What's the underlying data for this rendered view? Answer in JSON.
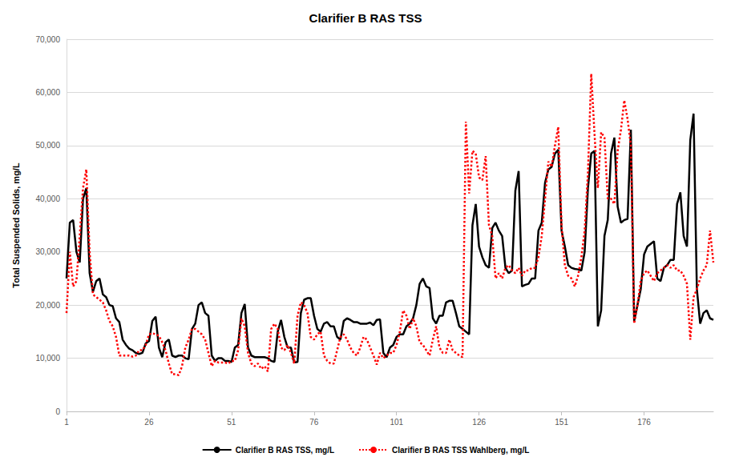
{
  "chart_data": {
    "type": "line",
    "title": "Clarifier B RAS TSS",
    "y_label": "Total Suspended Solids, mg/L",
    "xlim": [
      1,
      197
    ],
    "xticks": [
      1,
      26,
      51,
      76,
      101,
      126,
      151,
      176
    ],
    "ylim": [
      0,
      70000
    ],
    "yticks": [
      0,
      {
        "value": 10000,
        "label": "10,000"
      },
      {
        "value": 20000,
        "label": "20,000"
      },
      {
        "value": 30000,
        "label": "30,000"
      },
      {
        "value": 40000,
        "label": "40,000"
      },
      {
        "value": 50000,
        "label": "50,000"
      },
      {
        "value": 60000,
        "label": "60,000"
      },
      {
        "value": 70000,
        "label": "70,000"
      }
    ],
    "grid": true,
    "legend": "bottom",
    "x": [
      1,
      2,
      3,
      4,
      5,
      6,
      7,
      8,
      9,
      10,
      11,
      12,
      13,
      14,
      15,
      16,
      17,
      18,
      19,
      20,
      21,
      22,
      23,
      24,
      25,
      26,
      27,
      28,
      29,
      30,
      31,
      32,
      33,
      34,
      35,
      36,
      37,
      38,
      39,
      40,
      41,
      42,
      43,
      44,
      45,
      46,
      47,
      48,
      49,
      50,
      51,
      52,
      53,
      54,
      55,
      56,
      57,
      58,
      59,
      60,
      61,
      62,
      63,
      64,
      65,
      66,
      67,
      68,
      69,
      70,
      71,
      72,
      73,
      74,
      75,
      76,
      77,
      78,
      79,
      80,
      81,
      82,
      83,
      84,
      85,
      86,
      87,
      88,
      89,
      90,
      91,
      92,
      93,
      94,
      95,
      96,
      97,
      98,
      99,
      100,
      101,
      102,
      103,
      104,
      105,
      106,
      107,
      108,
      109,
      110,
      111,
      112,
      113,
      114,
      115,
      116,
      117,
      118,
      119,
      120,
      121,
      122,
      123,
      124,
      125,
      126,
      127,
      128,
      129,
      130,
      131,
      132,
      133,
      134,
      135,
      136,
      137,
      138,
      139,
      140,
      141,
      142,
      143,
      144,
      145,
      146,
      147,
      148,
      149,
      150,
      151,
      152,
      153,
      154,
      155,
      156,
      157,
      158,
      159,
      160,
      161,
      162,
      163,
      164,
      165,
      166,
      167,
      168,
      169,
      170,
      171,
      172,
      173,
      174,
      175,
      176,
      177,
      178,
      179,
      180,
      181,
      182,
      183,
      184,
      185,
      186,
      187,
      188,
      189,
      190,
      191,
      192,
      193,
      194,
      195,
      196,
      197
    ],
    "series": [
      {
        "name": "Clarifier B RAS TSS, mg/L",
        "color": "#000000",
        "line_style": "solid",
        "values": [
          25000,
          35500,
          36000,
          30000,
          28000,
          40000,
          42000,
          26000,
          22500,
          24500,
          25000,
          22000,
          21500,
          20000,
          19800,
          17500,
          16800,
          13500,
          12500,
          11800,
          11500,
          11000,
          10800,
          11000,
          12800,
          13200,
          17000,
          17800,
          12000,
          10200,
          13000,
          13500,
          10500,
          10200,
          10500,
          10500,
          10000,
          9800,
          15500,
          16500,
          20000,
          20500,
          18500,
          18000,
          10500,
          9500,
          10000,
          10000,
          9500,
          9500,
          9300,
          12000,
          12500,
          18500,
          20200,
          12000,
          10500,
          10200,
          10200,
          10200,
          10200,
          10000,
          9500,
          9300,
          15000,
          17200,
          14000,
          12000,
          12000,
          9200,
          9300,
          18500,
          21000,
          21300,
          21300,
          18000,
          15500,
          15000,
          16500,
          16800,
          16000,
          16000,
          14000,
          13500,
          17000,
          17500,
          17200,
          16800,
          16800,
          16500,
          16500,
          16500,
          16700,
          16200,
          17200,
          17300,
          11000,
          10200,
          12000,
          12500,
          14000,
          14500,
          14500,
          16000,
          16500,
          17500,
          20000,
          24000,
          25000,
          23500,
          23200,
          17500,
          16500,
          18000,
          18000,
          20500,
          20800,
          20800,
          18500,
          16000,
          15500,
          15000,
          14500,
          35000,
          39000,
          31000,
          29000,
          27500,
          27000,
          34500,
          35500,
          34000,
          33000,
          27000,
          26000,
          26500,
          41500,
          45200,
          23500,
          23800,
          24000,
          25000,
          25000,
          34000,
          35500,
          43000,
          45500,
          46000,
          48500,
          49200,
          34000,
          31000,
          27500,
          27000,
          26800,
          26700,
          26500,
          30000,
          42000,
          48500,
          49000,
          16000,
          19000,
          33000,
          36000,
          48500,
          51500,
          38500,
          35500,
          36000,
          36200,
          53000,
          17000,
          20000,
          23000,
          29500,
          31000,
          31500,
          32000,
          25000,
          24500,
          27000,
          27500,
          28500,
          28500,
          39000,
          41200,
          33000,
          31000,
          51000,
          56000,
          23000,
          16500,
          18500,
          19000,
          17500,
          17200
        ]
      },
      {
        "name": "Clarifier B RAS TSS Wahlberg, mg/L",
        "color": "#ff0000",
        "line_style": "dotted",
        "values": [
          18500,
          30000,
          23500,
          24500,
          33000,
          42000,
          45500,
          30000,
          22000,
          21500,
          21000,
          20500,
          19000,
          17000,
          16000,
          14000,
          10500,
          10500,
          10500,
          10500,
          10300,
          10500,
          11500,
          11500,
          12500,
          14500,
          14700,
          14500,
          14200,
          13000,
          11500,
          9000,
          7000,
          7000,
          6800,
          8500,
          12000,
          13500,
          15500,
          15500,
          15000,
          14500,
          13500,
          11000,
          8500,
          9500,
          9200,
          9200,
          9200,
          9000,
          9500,
          9500,
          11500,
          17500,
          16000,
          11000,
          9000,
          8500,
          9000,
          8000,
          8500,
          7500,
          15500,
          16500,
          15500,
          12000,
          11500,
          12500,
          11000,
          9000,
          18000,
          20500,
          20000,
          18500,
          14000,
          13500,
          14500,
          15000,
          10500,
          9500,
          9000,
          9000,
          11500,
          14000,
          14500,
          13500,
          12000,
          11000,
          10500,
          12000,
          14000,
          13500,
          12000,
          10500,
          8800,
          11000,
          10000,
          10500,
          11000,
          11000,
          12500,
          15000,
          19000,
          18000,
          15500,
          17500,
          16000,
          13000,
          12500,
          11500,
          10500,
          13500,
          16000,
          12000,
          11000,
          11000,
          13500,
          11500,
          11000,
          10500,
          10200,
          54500,
          41000,
          49000,
          48500,
          44000,
          43500,
          48000,
          35000,
          33000,
          25000,
          26000,
          25000,
          27000,
          27500,
          26500,
          26000,
          27000,
          25500,
          26500,
          26500,
          27000,
          27000,
          29000,
          33000,
          40000,
          47000,
          46000,
          50000,
          53500,
          35000,
          27500,
          25500,
          25000,
          23500,
          25500,
          29000,
          34000,
          45000,
          63500,
          52000,
          42000,
          52500,
          51500,
          40000,
          40000,
          39000,
          49000,
          53000,
          58500,
          55000,
          50000,
          16500,
          20000,
          24500,
          26000,
          26500,
          25500,
          24500,
          26000,
          26500,
          27000,
          27500,
          27000,
          27500,
          26500,
          26500,
          25500,
          24000,
          13500,
          21500,
          23000,
          25000,
          26500,
          27500,
          34000,
          28000
        ]
      }
    ]
  }
}
